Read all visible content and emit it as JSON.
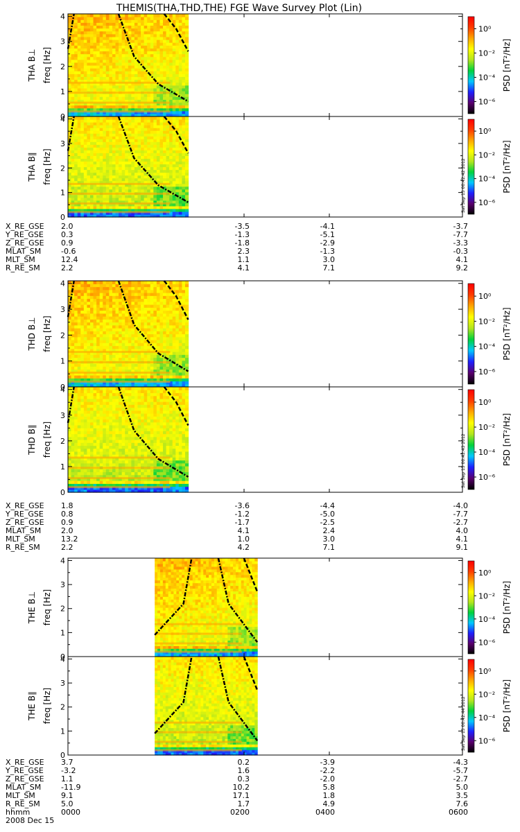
{
  "chart_data": {
    "type": "heatmap",
    "title": "THEMIS(THA,THD,THE) FGE Wave Survey Plot (Lin)",
    "ylabel": "freq [Hz]",
    "ylim": [
      0,
      4.1
    ],
    "yticks": [
      "0",
      "1",
      "2",
      "3",
      "4"
    ],
    "colorbar": {
      "label_prefix": "PSD",
      "units": "[nT²/Hz]",
      "scale": "log",
      "range": [
        1e-07,
        10
      ],
      "tick_labels": [
        "10⁰",
        "10⁻²",
        "10⁻⁴",
        "10⁻⁶"
      ],
      "stops": [
        "#000000",
        "#5a006e",
        "#1e1eff",
        "#00c8ff",
        "#00d23c",
        "#b4e61e",
        "#ffff00",
        "#ffa500",
        "#ff3c00",
        "#ff0000"
      ]
    },
    "timestamps": [
      "Sat Sep 15 00:42:42 2012",
      "Sat Sep 15 00:42:43 2012",
      "Sat Sep 15 00:42:44 2012"
    ],
    "xlabel_row": "hhmm",
    "xticks": [
      "0000",
      "0200",
      "0400",
      "0600"
    ],
    "date": "2008 Dec 15",
    "ephem_names": [
      "X_RE_GSE",
      "Y_RE_GSE",
      "Z_RE_GSE",
      "MLAT_SM",
      "MLT_SM",
      "R_RE_SM"
    ],
    "probes": [
      {
        "panels": [
          {
            "label_probe": "THA B⊥",
            "ylabel": "freq [Hz]",
            "data_span": [
              0,
              0.305
            ]
          },
          {
            "label_probe": "THA B∥",
            "ylabel": "freq [Hz]",
            "data_span": [
              0,
              0.305
            ]
          }
        ],
        "ephemeris": [
          [
            "2.0",
            "-3.5",
            "-4.1",
            "-3.7"
          ],
          [
            "0.3",
            "-1.3",
            "-5.1",
            "-7.7"
          ],
          [
            "0.9",
            "-1.8",
            "-2.9",
            "-3.3"
          ],
          [
            "-0.6",
            "2.3",
            "-1.3",
            "-0.3"
          ],
          [
            "12.4",
            "1.1",
            "3.0",
            "4.1"
          ],
          [
            "2.2",
            "4.1",
            "7.1",
            "9.2"
          ]
        ]
      },
      {
        "panels": [
          {
            "label_probe": "THD B⊥",
            "ylabel": "freq [Hz]",
            "data_span": [
              0,
              0.305
            ]
          },
          {
            "label_probe": "THD B∥",
            "ylabel": "freq [Hz]",
            "data_span": [
              0,
              0.305
            ]
          }
        ],
        "ephemeris": [
          [
            "1.8",
            "-3.6",
            "-4.4",
            "-4.0"
          ],
          [
            "0.8",
            "-1.2",
            "-5.0",
            "-7.7"
          ],
          [
            "0.9",
            "-1.7",
            "-2.5",
            "-2.7"
          ],
          [
            "2.0",
            "4.1",
            "2.4",
            "4.0"
          ],
          [
            "13.2",
            "1.0",
            "3.0",
            "4.1"
          ],
          [
            "2.2",
            "4.2",
            "7.1",
            "9.1"
          ]
        ]
      },
      {
        "panels": [
          {
            "label_probe": "THE B⊥",
            "ylabel": "freq [Hz]",
            "data_span": [
              0.22,
              0.48
            ]
          },
          {
            "label_probe": "THE B∥",
            "ylabel": "freq [Hz]",
            "data_span": [
              0.22,
              0.48
            ]
          }
        ],
        "ephemeris": [
          [
            "3.7",
            "0.2",
            "-3.9",
            "-4.3"
          ],
          [
            "-3.2",
            "1.6",
            "-2.2",
            "-5.7"
          ],
          [
            "1.1",
            "0.3",
            "-2.0",
            "-2.7"
          ],
          [
            "-11.9",
            "10.2",
            "5.8",
            "5.0"
          ],
          [
            "9.1",
            "17.1",
            "1.8",
            "3.5"
          ],
          [
            "5.0",
            "1.7",
            "4.9",
            "7.6"
          ]
        ]
      }
    ]
  }
}
